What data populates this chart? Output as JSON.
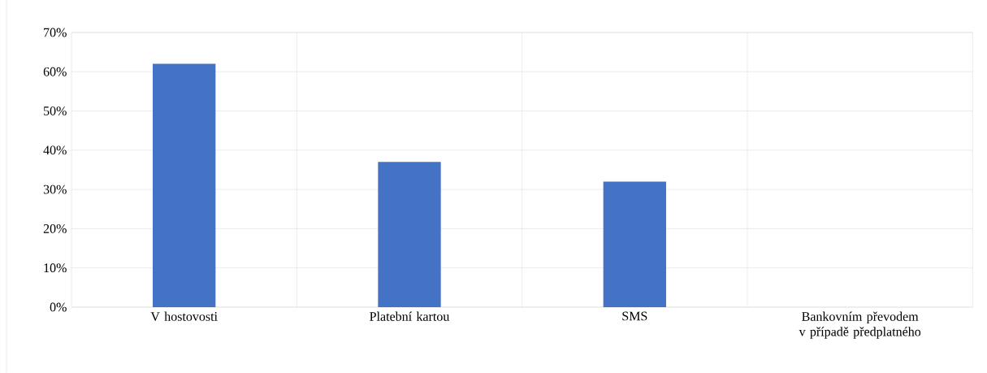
{
  "chart_data": {
    "type": "bar",
    "categories": [
      "V hostovosti",
      "Platební kartou",
      "SMS",
      "Bankovním převodem v případě předplatného"
    ],
    "values": [
      62,
      37,
      32,
      0
    ],
    "color": "#4472c4",
    "ylim": [
      0,
      70
    ],
    "yticks": [
      {
        "value": 0,
        "label": "0%"
      },
      {
        "value": 10,
        "label": "10%"
      },
      {
        "value": 20,
        "label": "20%"
      },
      {
        "value": 30,
        "label": "30%"
      },
      {
        "value": 40,
        "label": "40%"
      },
      {
        "value": 50,
        "label": "50%"
      },
      {
        "value": 60,
        "label": "60%"
      },
      {
        "value": 70,
        "label": "70%"
      }
    ],
    "grid": true
  }
}
